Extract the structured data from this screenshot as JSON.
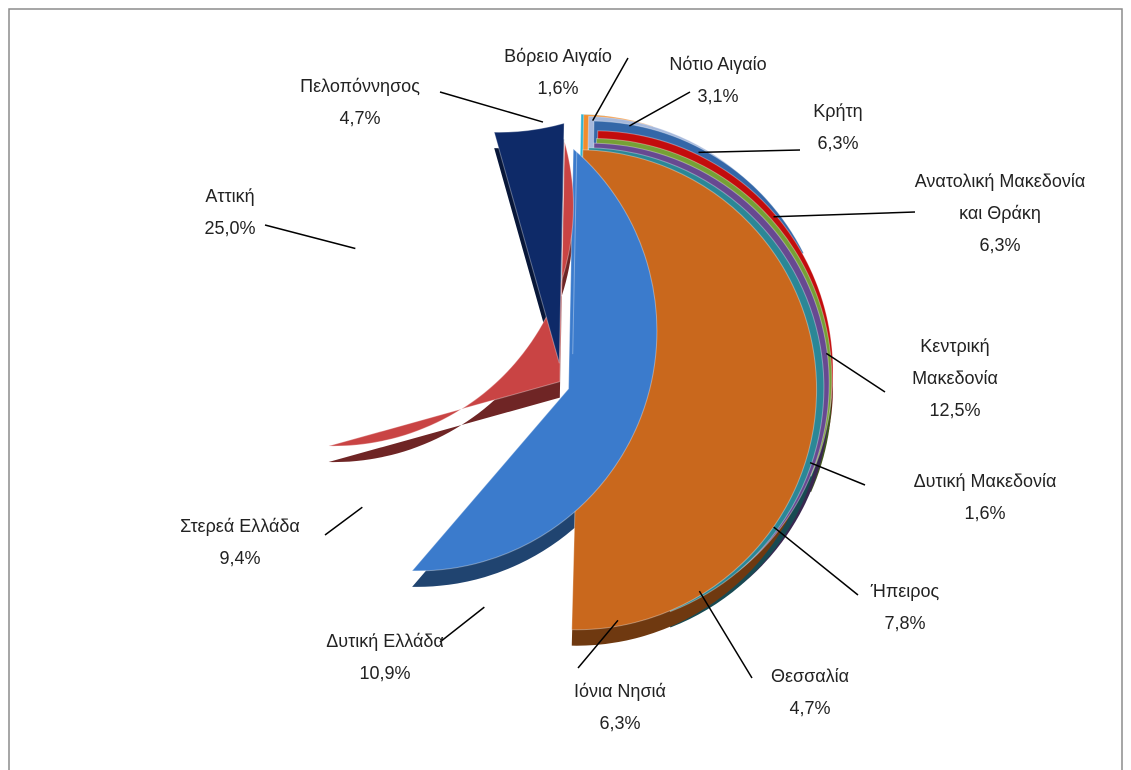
{
  "chart_data": {
    "type": "pie",
    "categories": [
      "Βόρειο Αιγαίο",
      "Νότιο Αιγαίο",
      "Κρήτη",
      "Ανατολική Μακεδονία και Θράκη",
      "Κεντρική Μακεδονία",
      "Δυτική Μακεδονία",
      "Ήπειρος",
      "Θεσσαλία",
      "Ιόνια Νησιά",
      "Δυτική Ελλάδα",
      "Στερεά Ελλάδα",
      "Αττική",
      "Πελοπόννησος"
    ],
    "values": [
      1.6,
      3.1,
      6.3,
      6.3,
      12.5,
      1.6,
      7.8,
      4.7,
      6.3,
      10.9,
      9.4,
      25.0,
      4.7
    ],
    "value_labels": [
      "1,6%",
      "3,1%",
      "6,3%",
      "6,3%",
      "12,5%",
      "1,6%",
      "7,8%",
      "4,7%",
      "6,3%",
      "10,9%",
      "9,4%",
      "25,0%",
      "4,7%"
    ],
    "colors": [
      "#2fb3d3",
      "#f28c2c",
      "#a5b8dc",
      "#3467a8",
      "#c30d0d",
      "#76a035",
      "#674991",
      "#2b8796",
      "#c9681d",
      "#3b7bcc",
      "#c94444",
      "#0e2a68",
      "#7c5bad"
    ]
  }
}
